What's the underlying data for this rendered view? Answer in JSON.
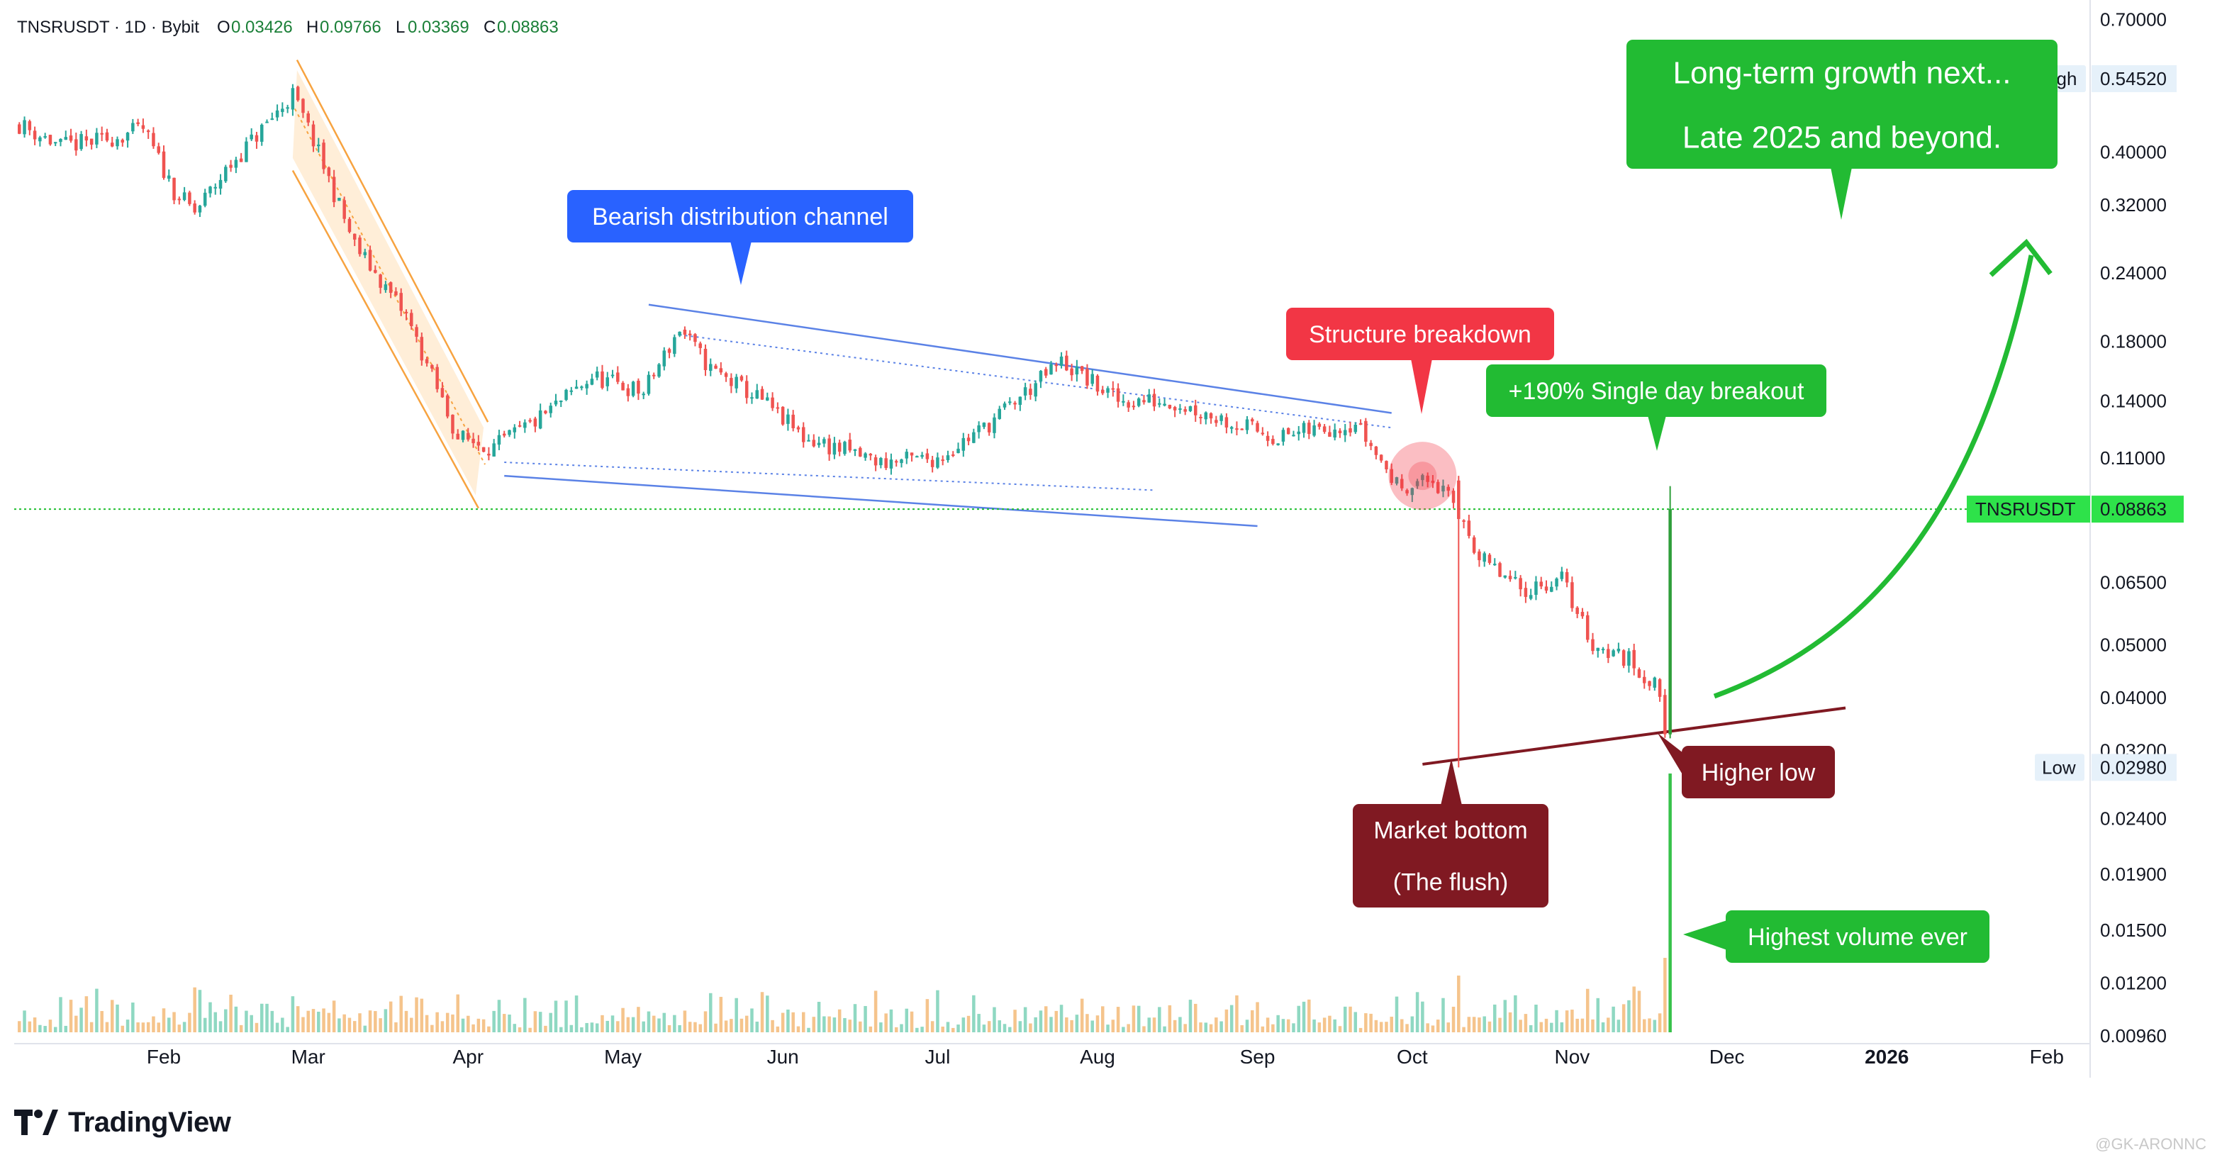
{
  "header": {
    "symbol_line": "TNSRUSDT · 1D · Bybit",
    "open_label": "O",
    "open": "0.03426",
    "high_label": "H",
    "high": "0.09766",
    "low_label": "L",
    "low": "0.03369",
    "close_label": "C",
    "close": "0.08863"
  },
  "brand": {
    "name": "TradingView"
  },
  "watermark": "@GK-ARONNC",
  "colors": {
    "up": "#26a69a",
    "down": "#ef5350",
    "blue_annotation": "#2962ff",
    "green_annotation": "#22bb33",
    "red_annotation": "#f23645",
    "maroon_annotation": "#801922",
    "volume_up": "#8fd8c2",
    "volume_down": "#f5c48c",
    "price_line": "#1fbf2f"
  },
  "chart_data": {
    "type": "candlestick",
    "symbol": "TNSRUSDT",
    "interval": "1D",
    "exchange": "Bybit",
    "y_scale": "log",
    "ylim": [
      0.0094,
      0.72
    ],
    "y_ticks": [
      "0.70000",
      "0.54520",
      "0.40000",
      "0.32000",
      "0.24000",
      "0.18000",
      "0.14000",
      "0.11000",
      "0.08863",
      "0.06500",
      "0.05000",
      "0.04000",
      "0.03200",
      "0.02980",
      "0.02400",
      "0.01900",
      "0.01500",
      "0.01200",
      "0.00960"
    ],
    "x_ticks": [
      {
        "label": "Feb",
        "date": "2025-02-01"
      },
      {
        "label": "Mar",
        "date": "2025-03-01"
      },
      {
        "label": "Apr",
        "date": "2025-04-01"
      },
      {
        "label": "May",
        "date": "2025-05-01"
      },
      {
        "label": "Jun",
        "date": "2025-06-01"
      },
      {
        "label": "Jul",
        "date": "2025-07-01"
      },
      {
        "label": "Aug",
        "date": "2025-08-01"
      },
      {
        "label": "Sep",
        "date": "2025-09-01"
      },
      {
        "label": "Oct",
        "date": "2025-10-01"
      },
      {
        "label": "Nov",
        "date": "2025-11-01"
      },
      {
        "label": "Dec",
        "date": "2025-12-01"
      },
      {
        "label": "2026",
        "date": "2026-01-01"
      },
      {
        "label": "Feb",
        "date": "2026-02-01"
      }
    ],
    "x_range": [
      "2025-01-03",
      "2026-02-09"
    ],
    "price_anchors": [
      {
        "date": "2025-01-04",
        "close": 0.45
      },
      {
        "date": "2025-01-12",
        "close": 0.41
      },
      {
        "date": "2025-01-20",
        "close": 0.42
      },
      {
        "date": "2025-01-28",
        "close": 0.44
      },
      {
        "date": "2025-02-03",
        "close": 0.34
      },
      {
        "date": "2025-02-07",
        "close": 0.31
      },
      {
        "date": "2025-02-14",
        "close": 0.38
      },
      {
        "date": "2025-02-20",
        "close": 0.44
      },
      {
        "date": "2025-02-26",
        "close": 0.51
      },
      {
        "date": "2025-03-02",
        "close": 0.42
      },
      {
        "date": "2025-03-10",
        "close": 0.27
      },
      {
        "date": "2025-03-20",
        "close": 0.2
      },
      {
        "date": "2025-03-30",
        "close": 0.12
      },
      {
        "date": "2025-04-06",
        "close": 0.115
      },
      {
        "date": "2025-04-15",
        "close": 0.13
      },
      {
        "date": "2025-04-25",
        "close": 0.155
      },
      {
        "date": "2025-05-05",
        "close": 0.145
      },
      {
        "date": "2025-05-12",
        "close": 0.19
      },
      {
        "date": "2025-05-18",
        "close": 0.16
      },
      {
        "date": "2025-05-28",
        "close": 0.14
      },
      {
        "date": "2025-06-05",
        "close": 0.12
      },
      {
        "date": "2025-06-20",
        "close": 0.108
      },
      {
        "date": "2025-07-01",
        "close": 0.11
      },
      {
        "date": "2025-07-10",
        "close": 0.125
      },
      {
        "date": "2025-07-25",
        "close": 0.165
      },
      {
        "date": "2025-08-05",
        "close": 0.14
      },
      {
        "date": "2025-08-15",
        "close": 0.14
      },
      {
        "date": "2025-08-25",
        "close": 0.13
      },
      {
        "date": "2025-09-05",
        "close": 0.12
      },
      {
        "date": "2025-09-20",
        "close": 0.128
      },
      {
        "date": "2025-09-28",
        "close": 0.098
      },
      {
        "date": "2025-10-05",
        "close": 0.1
      },
      {
        "date": "2025-10-11",
        "close": 0.085
      },
      {
        "date": "2025-10-14",
        "close": 0.072
      },
      {
        "date": "2025-10-22",
        "close": 0.063
      },
      {
        "date": "2025-10-30",
        "close": 0.066
      },
      {
        "date": "2025-11-05",
        "close": 0.05
      },
      {
        "date": "2025-11-12",
        "close": 0.047
      },
      {
        "date": "2025-11-18",
        "close": 0.041
      },
      {
        "date": "2025-11-19",
        "close": 0.03426
      },
      {
        "date": "2025-11-20",
        "close": 0.08863
      }
    ],
    "special_candles": [
      {
        "date": "2025-10-10",
        "open": 0.1,
        "high": 0.102,
        "low": 0.0298,
        "close": 0.085
      },
      {
        "date": "2025-11-20",
        "open": 0.03426,
        "high": 0.09766,
        "low": 0.03369,
        "close": 0.08863
      }
    ],
    "last_price": {
      "symbol": "TNSRUSDT",
      "value": "0.08863"
    },
    "high_marker": {
      "label": "High",
      "value": "0.54520"
    },
    "low_marker": {
      "label": "Low",
      "value": "0.02980"
    },
    "volume": {
      "max_date": "2025-11-20",
      "note": "highest volume bar on the final candle"
    },
    "annotations": {
      "bearish_channel": "Bearish distribution channel",
      "structure_breakdown": "Structure breakdown",
      "single_day_breakout": "+190% Single day breakout",
      "long_term_line1": "Long-term growth next...",
      "long_term_line2": "Late 2025 and beyond.",
      "market_bottom_line1": "Market bottom",
      "market_bottom_line2": "(The flush)",
      "higher_low": "Higher low",
      "highest_volume": "Highest volume ever"
    }
  }
}
